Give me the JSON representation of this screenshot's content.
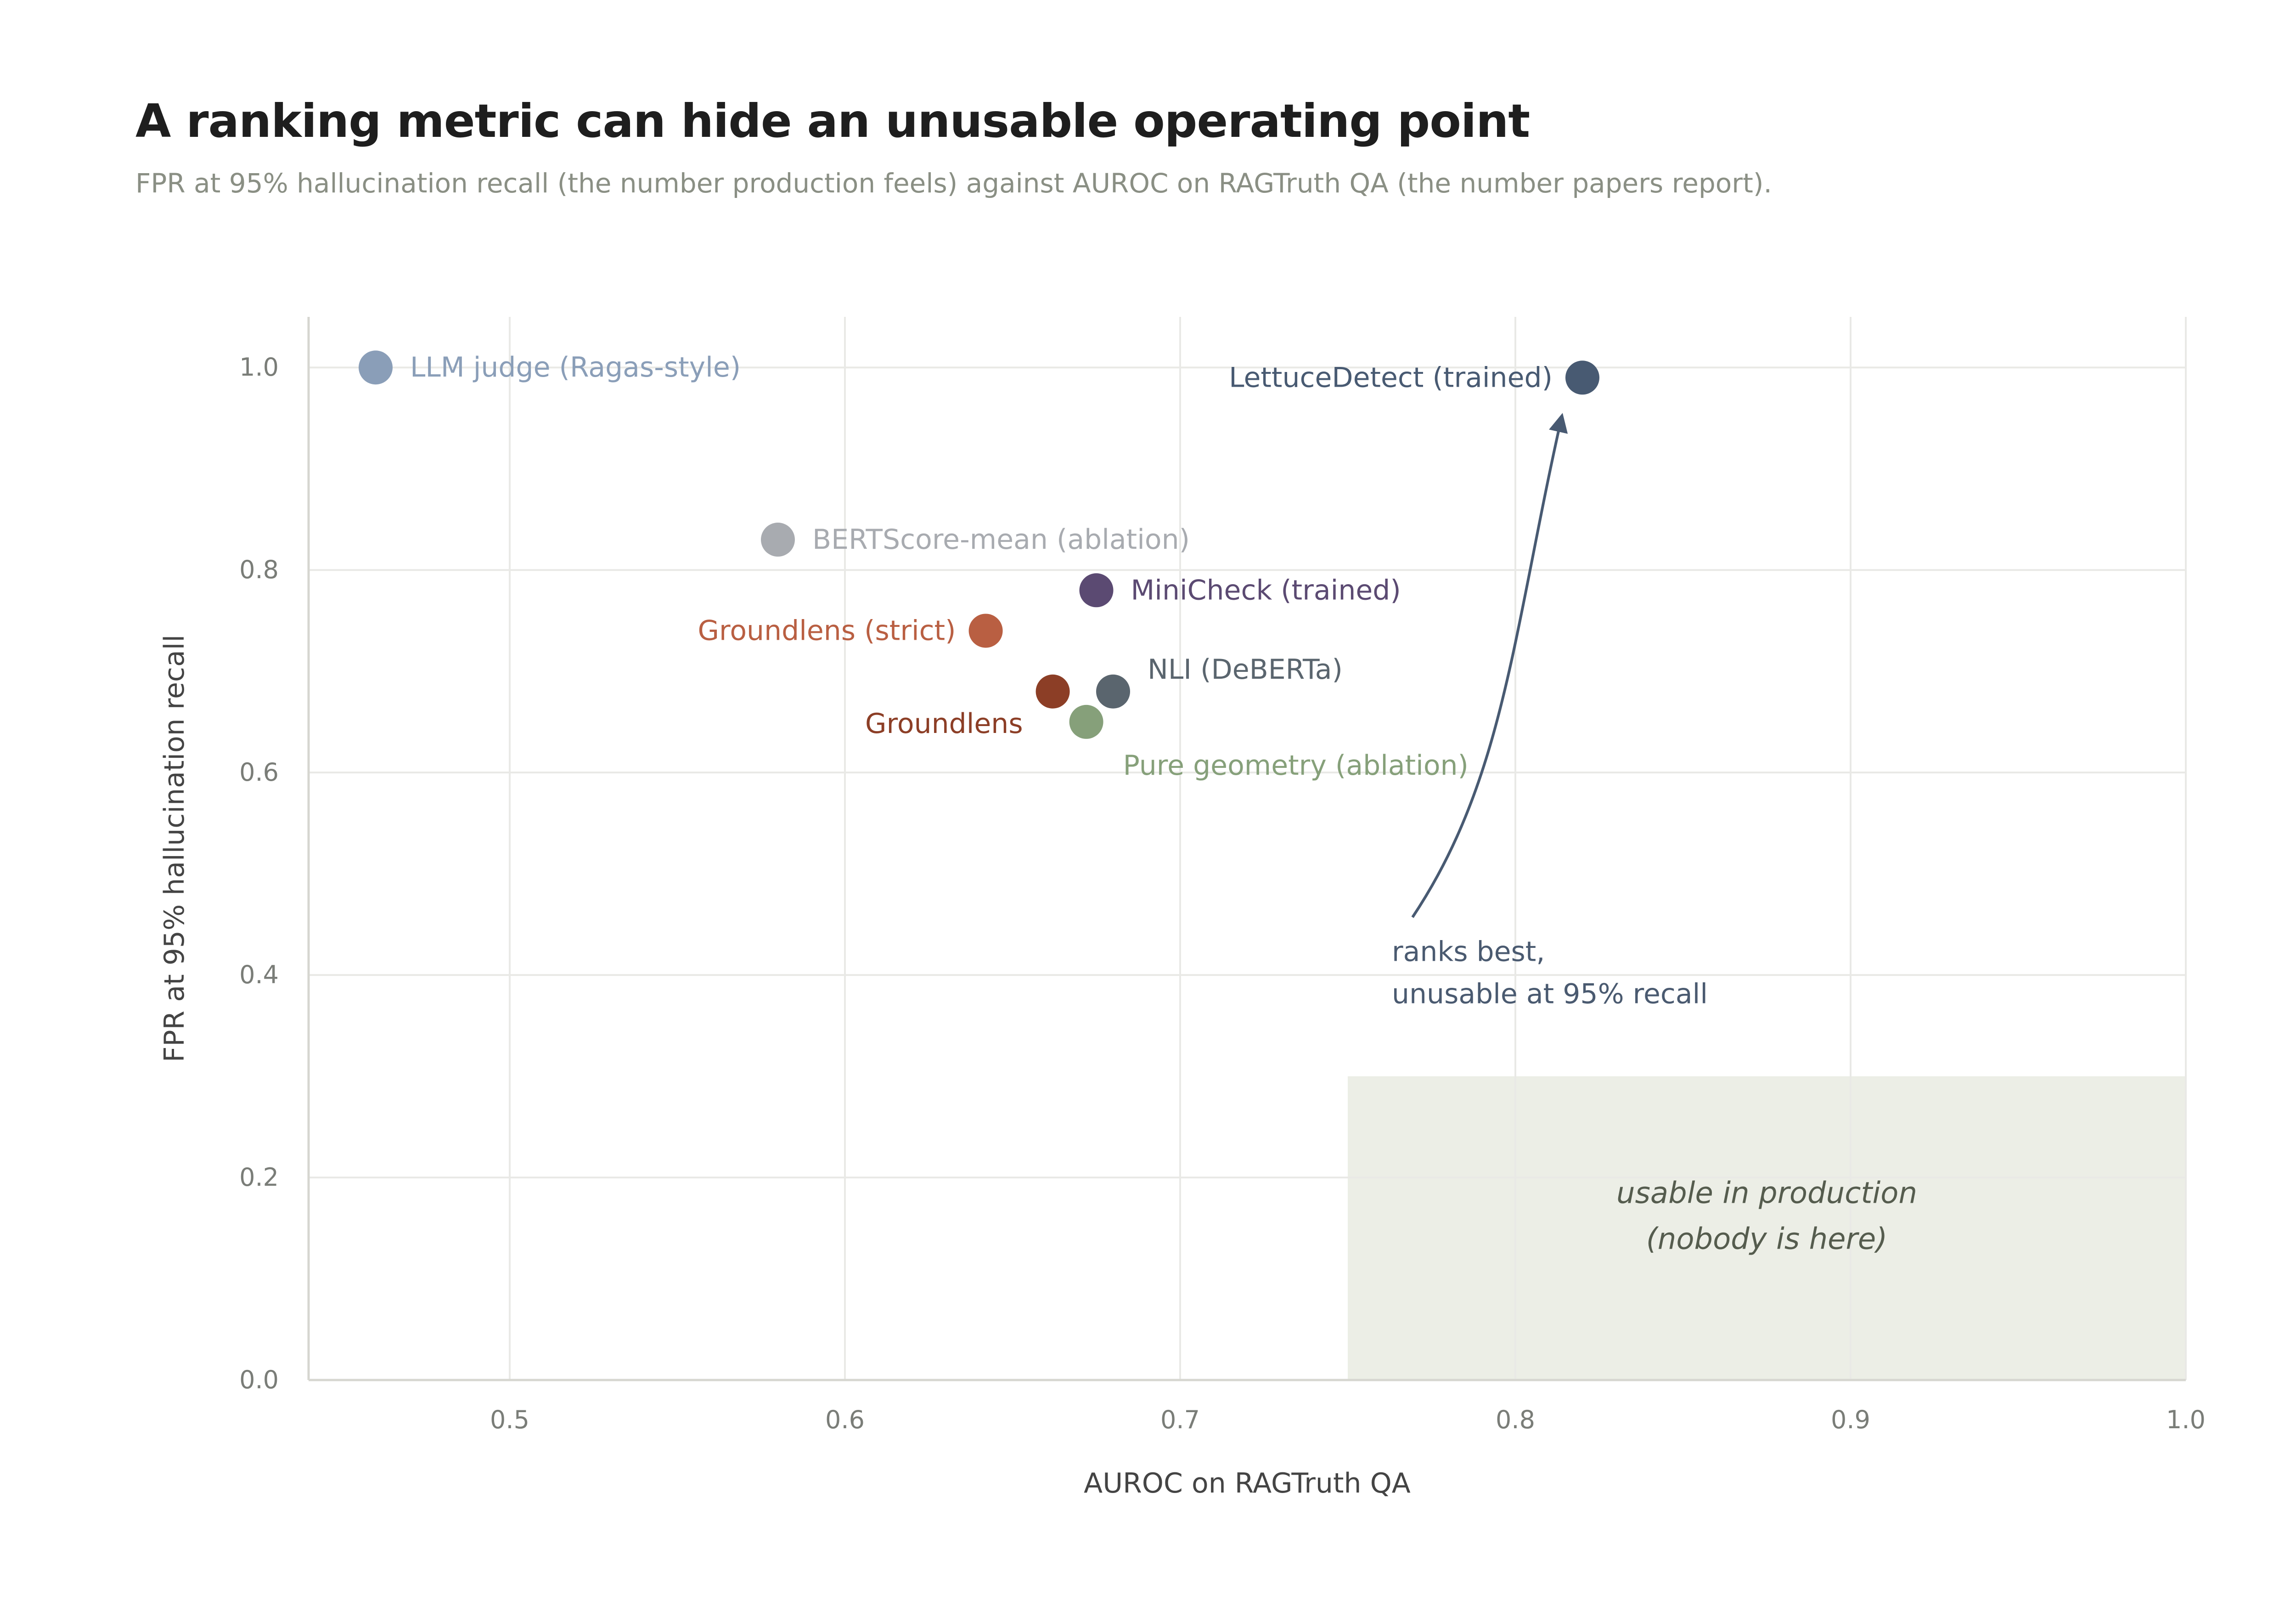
{
  "title": "A ranking metric can hide an unusable operating point",
  "subtitle": "FPR at 95% hallucination recall (the number production feels) against AUROC on RAGTruth QA (the number papers report).",
  "chart_data": {
    "type": "scatter",
    "xlabel": "AUROC on RAGTruth QA",
    "ylabel": "FPR at 95% hallucination recall",
    "xlim": [
      0.44,
      1.0
    ],
    "ylim": [
      0.0,
      1.05
    ],
    "xticks": [
      "0.5",
      "0.6",
      "0.7",
      "0.8",
      "0.9",
      "1.0"
    ],
    "yticks": [
      "0.0",
      "0.2",
      "0.4",
      "0.6",
      "0.8",
      "1.0"
    ],
    "grid": true,
    "points": [
      {
        "name": "LLM judge (Ragas-style)",
        "x": 0.46,
        "y": 1.0,
        "color": "#8a9eb8",
        "label_side": "right"
      },
      {
        "name": "LettuceDetect (trained)",
        "x": 0.82,
        "y": 0.99,
        "color": "#485a72",
        "label_side": "left"
      },
      {
        "name": "BERTScore-mean (ablation)",
        "x": 0.58,
        "y": 0.83,
        "color": "#a8abb0",
        "label_side": "right"
      },
      {
        "name": "MiniCheck (trained)",
        "x": 0.675,
        "y": 0.78,
        "color": "#5b4a72",
        "label_side": "right"
      },
      {
        "name": "Groundlens (strict)",
        "x": 0.642,
        "y": 0.74,
        "color": "#b95f42",
        "label_side": "left"
      },
      {
        "name": "NLI (DeBERTa)",
        "x": 0.68,
        "y": 0.68,
        "color": "#5a656e",
        "label_side": "above-right"
      },
      {
        "name": "Groundlens",
        "x": 0.662,
        "y": 0.68,
        "color": "#8c3e26",
        "label_side": "below-left"
      },
      {
        "name": "Pure geometry (ablation)",
        "x": 0.672,
        "y": 0.65,
        "color": "#86a07a",
        "label_side": "below-right"
      }
    ],
    "annotation": {
      "lines": [
        "ranks best,",
        "unusable at 95% recall"
      ],
      "color": "#485a72"
    },
    "region": {
      "x": [
        0.75,
        1.0
      ],
      "y": [
        0.0,
        0.3
      ],
      "lines": [
        "usable in production",
        "(nobody is here)"
      ],
      "color": "#eceee6"
    }
  }
}
